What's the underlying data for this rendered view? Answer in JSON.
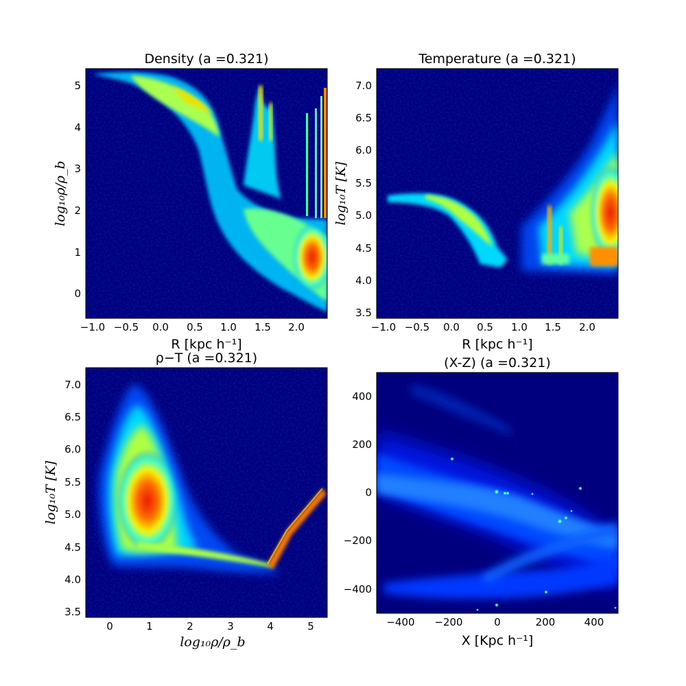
{
  "chart_data": [
    {
      "type": "heatmap",
      "title": "Density (a =0.321)",
      "xlabel": "R [kpc h⁻¹]",
      "ylabel": "log₁₀ρ/ρ_b",
      "xlim": [
        -1.1,
        2.45
      ],
      "ylim": [
        -0.6,
        5.4
      ],
      "xticks": [
        "−1.0",
        "−0.5",
        "0.0",
        "0.5",
        "1.0",
        "1.5",
        "2.0"
      ],
      "xtick_values": [
        -1.0,
        -0.5,
        0.0,
        0.5,
        1.0,
        1.5,
        2.0
      ],
      "yticks": [
        "0",
        "1",
        "2",
        "3",
        "4",
        "5"
      ],
      "ytick_values": [
        0,
        1,
        2,
        3,
        4,
        5
      ],
      "background": "#00007f",
      "colormap": "jet",
      "features": {
        "main_band": [
          [
            -1.0,
            5.3
          ],
          [
            -0.5,
            5.25
          ],
          [
            0.0,
            5.15
          ],
          [
            0.5,
            4.6
          ],
          [
            0.85,
            3.9
          ],
          [
            1.0,
            2.9
          ],
          [
            1.2,
            2.3
          ],
          [
            1.5,
            1.9
          ],
          [
            1.8,
            1.5
          ],
          [
            2.1,
            1.1
          ],
          [
            2.45,
            0.6
          ]
        ],
        "spikes": [
          {
            "x": 1.5,
            "y_top": 5.05
          },
          {
            "x": 1.62,
            "y_top": 4.6
          },
          {
            "x": 2.18,
            "y_top": 4.35
          },
          {
            "x": 2.28,
            "y_top": 4.45
          },
          {
            "x": 2.36,
            "y_top": 4.75
          },
          {
            "x": 2.43,
            "y_top": 5.0
          }
        ]
      }
    },
    {
      "type": "heatmap",
      "title": "Temperature (a =0.321)",
      "xlabel": "R [kpc h⁻¹]",
      "ylabel": "log₁₀T  [K]",
      "xlim": [
        -1.1,
        2.45
      ],
      "ylim": [
        3.4,
        7.25
      ],
      "xticks": [
        "−1.0",
        "−0.5",
        "0.0",
        "0.5",
        "1.0",
        "1.5",
        "2.0"
      ],
      "xtick_values": [
        -1.0,
        -0.5,
        0.0,
        0.5,
        1.0,
        1.5,
        2.0
      ],
      "yticks": [
        "3.5",
        "4.0",
        "4.5",
        "5.0",
        "5.5",
        "6.0",
        "6.5",
        "7.0"
      ],
      "ytick_values": [
        3.5,
        4.0,
        4.5,
        5.0,
        5.5,
        6.0,
        6.5,
        7.0
      ],
      "background": "#00007f",
      "colormap": "jet",
      "features": {
        "arc": [
          [
            -0.8,
            5.3
          ],
          [
            -0.3,
            5.3
          ],
          [
            0.0,
            5.25
          ],
          [
            0.3,
            5.0
          ],
          [
            0.6,
            4.6
          ],
          [
            0.8,
            4.35
          ],
          [
            0.9,
            4.3
          ]
        ],
        "hot_region_x": [
          1.0,
          2.45
        ],
        "hot_region_peak": [
          2.4,
          5.0
        ]
      }
    },
    {
      "type": "heatmap",
      "title": "ρ−T (a =0.321)",
      "xlabel": "log₁₀ρ/ρ_b",
      "ylabel": "log₁₀T  [K]",
      "xlim": [
        -0.6,
        5.4
      ],
      "ylim": [
        3.4,
        7.25
      ],
      "xticks": [
        "0",
        "1",
        "2",
        "3",
        "4",
        "5"
      ],
      "xtick_values": [
        0,
        1,
        2,
        3,
        4,
        5
      ],
      "yticks": [
        "3.5",
        "4.0",
        "4.5",
        "5.0",
        "5.5",
        "6.0",
        "6.5",
        "7.0"
      ],
      "ytick_values": [
        3.5,
        4.0,
        4.5,
        5.0,
        5.5,
        6.0,
        6.5,
        7.0
      ],
      "background": "#00007f",
      "colormap": "jet",
      "features": {
        "blob_center": [
          1.1,
          5.1
        ],
        "tail": [
          [
            1.5,
            4.55
          ],
          [
            2.5,
            4.45
          ],
          [
            3.5,
            4.35
          ],
          [
            4.1,
            4.25
          ],
          [
            4.6,
            4.8
          ],
          [
            5.3,
            5.3
          ]
        ]
      }
    },
    {
      "type": "heatmap",
      "title": "(X-Z) (a =0.321)",
      "xlabel": "X [Kpc h⁻¹]",
      "ylabel": "",
      "xlim": [
        -500,
        500
      ],
      "ylim": [
        -500,
        500
      ],
      "xticks": [
        "−400",
        "−200",
        "0",
        "200",
        "400"
      ],
      "xtick_values": [
        -400,
        -200,
        0,
        200,
        400
      ],
      "yticks": [
        "−400",
        "−200",
        "0",
        "200",
        "400"
      ],
      "ytick_values": [
        -400,
        -200,
        0,
        200,
        400
      ],
      "background": "#00007f",
      "colormap": "jet",
      "features": {
        "hotspots": [
          [
            -180,
            140
          ],
          [
            0,
            0
          ],
          [
            20,
            -5
          ],
          [
            40,
            -10
          ],
          [
            150,
            -10
          ],
          [
            270,
            -120
          ],
          [
            290,
            -110
          ],
          [
            330,
            20
          ],
          [
            210,
            -410
          ],
          [
            0,
            -470
          ],
          [
            -80,
            -490
          ],
          [
            490,
            -480
          ]
        ]
      }
    }
  ]
}
